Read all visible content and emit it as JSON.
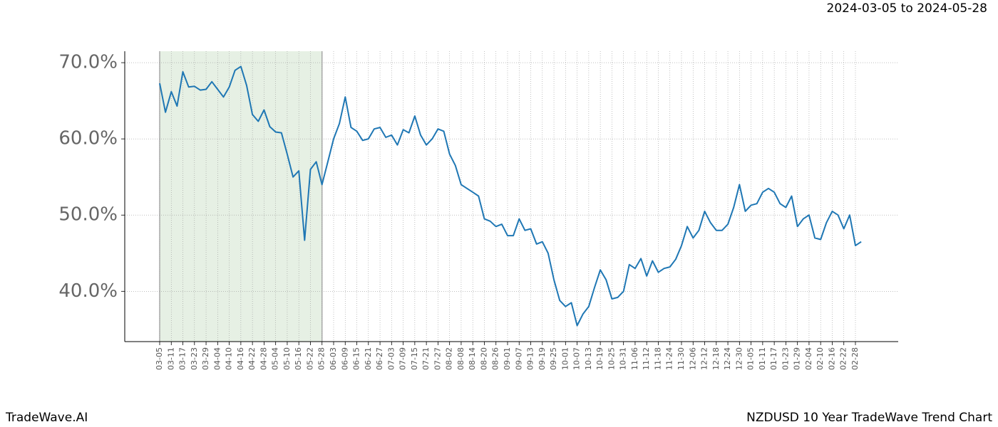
{
  "chart_data": {
    "type": "line",
    "date_range": "2024-03-05 to 2024-05-28",
    "brand": "TradeWave.AI",
    "title": "NZDUSD 10 Year TradeWave Trend Chart",
    "x": [
      "03-05",
      null,
      "03-11",
      null,
      "03-17",
      null,
      "03-23",
      null,
      "03-29",
      null,
      "04-04",
      null,
      "04-10",
      null,
      "04-16",
      null,
      "04-22",
      null,
      "04-28",
      null,
      "05-04",
      null,
      "05-10",
      null,
      "05-16",
      null,
      "05-22",
      null,
      "05-28",
      null,
      "06-03",
      null,
      "06-09",
      null,
      "06-15",
      null,
      "06-21",
      null,
      "06-27",
      null,
      "07-03",
      null,
      "07-09",
      null,
      "07-15",
      null,
      "07-21",
      null,
      "07-27",
      null,
      "08-02",
      null,
      "08-08",
      null,
      "08-14",
      null,
      "08-20",
      null,
      "08-26",
      null,
      "09-01",
      null,
      "09-07",
      null,
      "09-13",
      null,
      "09-19",
      null,
      "09-25",
      null,
      "10-01",
      null,
      "10-07",
      null,
      "10-13",
      null,
      "10-19",
      null,
      "10-25",
      null,
      "10-31",
      null,
      "11-06",
      null,
      "11-12",
      null,
      "11-18",
      null,
      "11-24",
      null,
      "11-30",
      null,
      "12-06",
      null,
      "12-12",
      null,
      "12-18",
      null,
      "12-24",
      null,
      "12-30",
      null,
      "01-05",
      null,
      "01-11",
      null,
      "01-17",
      null,
      "01-23",
      null,
      "01-29",
      null,
      "02-04",
      null,
      "02-10",
      null,
      "02-16",
      null,
      "02-22",
      null,
      "02-28",
      null
    ],
    "series": [
      {
        "color": "#1f77b4",
        "values": [
          67.3,
          63.5,
          66.2,
          64.3,
          68.8,
          66.8,
          66.9,
          66.4,
          66.5,
          67.5,
          66.5,
          65.5,
          66.8,
          69.0,
          69.5,
          67.0,
          63.2,
          62.3,
          63.8,
          61.6,
          60.9,
          60.8,
          58.0,
          55.0,
          55.8,
          46.7,
          56.0,
          57.0,
          54.0,
          57.0,
          60.0,
          62.0,
          65.5,
          61.5,
          61.0,
          59.8,
          60.0,
          61.3,
          61.5,
          60.2,
          60.5,
          59.2,
          61.2,
          60.8,
          63.0,
          60.5,
          59.2,
          60.0,
          61.3,
          61.0,
          58.0,
          56.5,
          54.0,
          53.5,
          53.0,
          52.5,
          49.5,
          49.2,
          48.5,
          48.8,
          47.3,
          47.3,
          49.5,
          48.0,
          48.2,
          46.2,
          46.5,
          45.0,
          41.5,
          38.8,
          38.0,
          38.5,
          35.5,
          37.0,
          38.0,
          40.5,
          42.8,
          41.5,
          39.0,
          39.2,
          40.0,
          43.5,
          43.0,
          44.3,
          42.0,
          44.0,
          42.5,
          43.0,
          43.2,
          44.2,
          46.0,
          48.5,
          47.0,
          48.0,
          50.5,
          49.0,
          48.0,
          48.0,
          48.8,
          51.0,
          54.0,
          50.5,
          51.3,
          51.5,
          53.0,
          53.5,
          53.0,
          51.5,
          51.0,
          52.5,
          48.5,
          49.5,
          50.0,
          47.0,
          46.8,
          49.0,
          50.5,
          50.0,
          48.2,
          50.0,
          46.0,
          46.5
        ]
      }
    ],
    "highlight_range": [
      "03-05",
      "05-28"
    ],
    "highlight_color": "#e6f0e4",
    "ylim": [
      33.4,
      71.5
    ],
    "yticks": [
      {
        "value": 40,
        "label": "40.0%"
      },
      {
        "value": 50,
        "label": "50.0%"
      },
      {
        "value": 60,
        "label": "60.0%"
      },
      {
        "value": 70,
        "label": "70.0%"
      }
    ],
    "grid": true
  }
}
